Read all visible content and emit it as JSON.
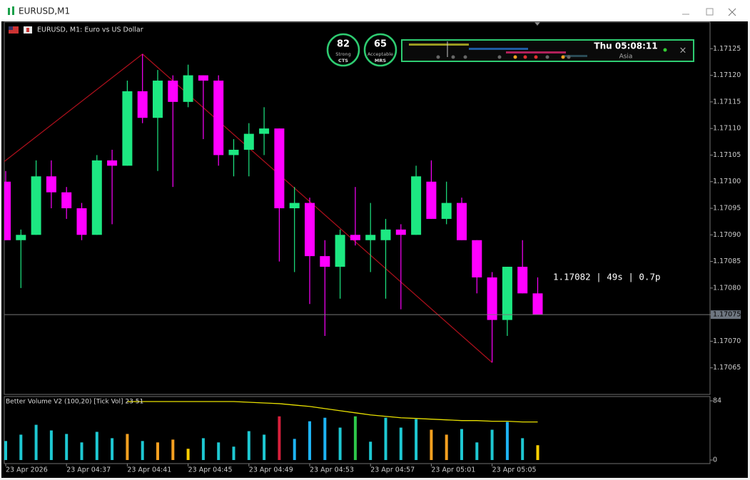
{
  "window": {
    "title": "EURUSD,M1"
  },
  "chart_header": "EURUSD, M1:  Euro vs US Dollar",
  "widgets": {
    "gauges": [
      {
        "value": "82",
        "rating": "Strong",
        "name": "CTS"
      },
      {
        "value": "65",
        "rating": "Acceptable",
        "name": "MRS"
      }
    ],
    "session_clock": "Thu 05:08:11",
    "session_name": "Asia",
    "close_glyph": "×"
  },
  "chart_data": [
    {
      "type": "candlestick",
      "categories": [
        "23 Apr 2026",
        null,
        null,
        null,
        "23 Apr 04:37",
        null,
        null,
        null,
        "23 Apr 04:41",
        null,
        null,
        null,
        "23 Apr 04:45",
        null,
        null,
        null,
        "23 Apr 04:49",
        null,
        null,
        null,
        "23 Apr 04:53",
        null,
        null,
        null,
        "23 Apr 04:57",
        null,
        null,
        null,
        "23 Apr 05:01",
        null,
        null,
        null,
        "23 Apr 05:05",
        null,
        null,
        null
      ],
      "open": [
        1.171,
        1.17089,
        1.1709,
        1.17101,
        1.17098,
        1.17095,
        1.1709,
        1.17104,
        1.17103,
        1.17117,
        1.17112,
        1.17119,
        1.17115,
        1.1712,
        1.17119,
        1.17105,
        1.17106,
        1.17109,
        1.1711,
        1.17095,
        1.17096,
        1.17086,
        1.17084,
        1.1709,
        1.17089,
        1.17089,
        1.17091,
        1.1709,
        1.171,
        1.17093,
        1.17096,
        1.17089,
        1.17082,
        1.17074,
        1.17084,
        1.17079
      ],
      "high": [
        1.17102,
        1.17091,
        1.17104,
        1.17104,
        1.17099,
        1.17096,
        1.17105,
        1.17106,
        1.17119,
        1.17124,
        1.17121,
        1.1712,
        1.17122,
        1.1712,
        1.1712,
        1.17108,
        1.17111,
        1.17114,
        1.1711,
        1.17099,
        1.17097,
        1.17089,
        1.17091,
        1.17099,
        1.17096,
        1.17093,
        1.17092,
        1.17103,
        1.17104,
        1.171,
        1.17097,
        1.17089,
        1.17083,
        1.17084,
        1.17089,
        1.17082
      ],
      "low": [
        1.17089,
        1.1708,
        1.1709,
        1.17095,
        1.17093,
        1.17089,
        1.1709,
        1.17092,
        1.17103,
        1.17111,
        1.17102,
        1.17099,
        1.17114,
        1.17108,
        1.17103,
        1.17101,
        1.17101,
        1.17105,
        1.17085,
        1.17083,
        1.17077,
        1.17071,
        1.17078,
        1.17088,
        1.17083,
        1.17078,
        1.17076,
        1.1709,
        1.17093,
        1.17092,
        1.17089,
        1.17079,
        1.17066,
        1.17071,
        1.17079,
        1.17075
      ],
      "close": [
        1.17089,
        1.1709,
        1.17101,
        1.17098,
        1.17095,
        1.1709,
        1.17104,
        1.17103,
        1.17117,
        1.17112,
        1.17119,
        1.17115,
        1.1712,
        1.17119,
        1.17105,
        1.17106,
        1.17109,
        1.1711,
        1.17095,
        1.17096,
        1.17086,
        1.17084,
        1.1709,
        1.17089,
        1.1709,
        1.17091,
        1.1709,
        1.17101,
        1.17093,
        1.17096,
        1.17089,
        1.17082,
        1.17074,
        1.17084,
        1.17079,
        1.17075
      ],
      "zigzag": [
        1.17104,
        null,
        null,
        null,
        null,
        null,
        null,
        null,
        null,
        1.17124,
        null,
        null,
        null,
        null,
        null,
        null,
        null,
        null,
        null,
        null,
        null,
        null,
        null,
        null,
        null,
        null,
        null,
        null,
        null,
        null,
        null,
        null,
        1.17066,
        null,
        null,
        null
      ],
      "up_color": "#1de882",
      "down_color": "#ff00ff",
      "zigzag_color": "#b0101c",
      "last_price": 1.17075,
      "annotation": "1.17082 | 49s | 0.7p",
      "ylim": [
        1.1706,
        1.1713
      ],
      "yticks": [
        {
          "value": 1.17065,
          "label": "1.17065"
        },
        {
          "value": 1.1707,
          "label": "1.17070"
        },
        {
          "value": 1.17075,
          "label": "1.17075"
        },
        {
          "value": 1.1708,
          "label": "1.17080"
        },
        {
          "value": 1.17085,
          "label": "1.17085"
        },
        {
          "value": 1.1709,
          "label": "1.17090"
        },
        {
          "value": 1.17095,
          "label": "1.17095"
        },
        {
          "value": 1.171,
          "label": "1.17100"
        },
        {
          "value": 1.17105,
          "label": "1.17105"
        },
        {
          "value": 1.1711,
          "label": "1.17110"
        },
        {
          "value": 1.17115,
          "label": "1.17115"
        },
        {
          "value": 1.1712,
          "label": "1.17120"
        },
        {
          "value": 1.17125,
          "label": "1.17125"
        }
      ]
    },
    {
      "type": "bar",
      "title": "Better Volume V2 (100,20) [Tick Vol] 23 51",
      "values": [
        27,
        36,
        50,
        42,
        37,
        25,
        40,
        31,
        37,
        27,
        25,
        29,
        16,
        31,
        25,
        19,
        41,
        36,
        62,
        30,
        55,
        60,
        46,
        62,
        26,
        60,
        46,
        58,
        43,
        36,
        44,
        25,
        43,
        54,
        31,
        21
      ],
      "colors": [
        "#1ec8d2",
        "#1ec8d2",
        "#1ec8d2",
        "#1ec8d2",
        "#1ec8d2",
        "#1ec8d2",
        "#1ec8d2",
        "#1ec8d2",
        "#f5a020",
        "#1ec8d2",
        "#f5a020",
        "#f5a020",
        "#ffd000",
        "#1ec8d2",
        "#1ec8d2",
        "#1ec8d2",
        "#1ec8d2",
        "#1ec8d2",
        "#d8203c",
        "#1eb4f5",
        "#1eb4f5",
        "#1eb4f5",
        "#1ec8d2",
        "#2ec84a",
        "#1ec8d2",
        "#1ec8d2",
        "#1ec8d2",
        "#1ec8d2",
        "#f5a020",
        "#f5a020",
        "#1ec8d2",
        "#1ec8d2",
        "#1ec8d2",
        "#1eb4f5",
        "#1ec8d2",
        "#ffd000"
      ],
      "average": [
        null,
        null,
        null,
        null,
        null,
        null,
        null,
        null,
        83,
        83,
        83,
        83,
        83,
        83,
        83,
        83,
        82,
        81,
        80,
        78,
        76,
        73,
        70,
        67,
        64,
        62,
        60,
        59,
        58,
        57,
        56,
        56,
        55,
        55,
        54,
        54
      ],
      "average_color": "#e8e000",
      "ylim": [
        0,
        84
      ],
      "yticks": [
        0,
        84
      ]
    }
  ]
}
